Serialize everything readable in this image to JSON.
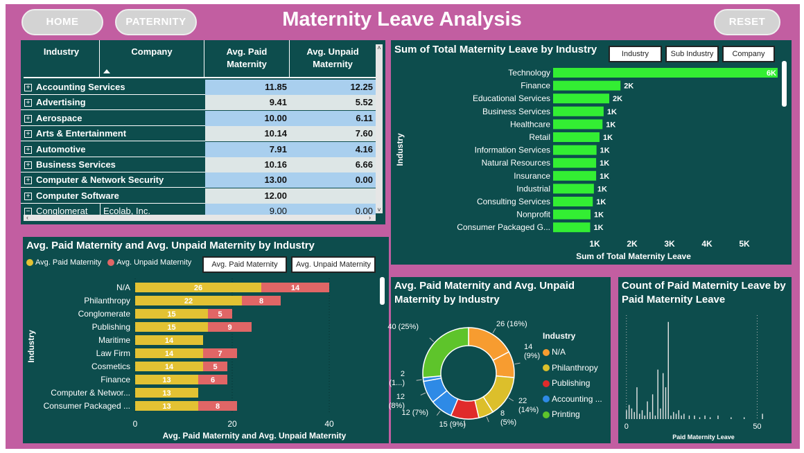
{
  "header": {
    "title": "Maternity Leave Analysis",
    "home_label": "HOME",
    "paternity_label": "PATERNITY",
    "reset_label": "RESET"
  },
  "colors": {
    "frame": "#c25ea1",
    "panel": "#0d4d4d",
    "bar_green": "#33ee33",
    "paid": "#e3c233",
    "unpaid": "#e06666",
    "row_blue": "#a9cfee",
    "row_light": "#dde6e6"
  },
  "table": {
    "headers": [
      "Industry",
      "Company",
      "Avg. Paid Maternity",
      "Avg. Unpaid Maternity"
    ],
    "rows": [
      {
        "industry": "Accounting Services",
        "company": "",
        "paid": "11.85",
        "unpaid": "12.25"
      },
      {
        "industry": "Advertising",
        "company": "",
        "paid": "9.41",
        "unpaid": "5.52"
      },
      {
        "industry": "Aerospace",
        "company": "",
        "paid": "10.00",
        "unpaid": "6.11"
      },
      {
        "industry": "Arts & Entertainment",
        "company": "",
        "paid": "10.14",
        "unpaid": "7.60"
      },
      {
        "industry": "Automotive",
        "company": "",
        "paid": "7.91",
        "unpaid": "4.16"
      },
      {
        "industry": "Business Services",
        "company": "",
        "paid": "10.16",
        "unpaid": "6.66"
      },
      {
        "industry": "Computer & Network Security",
        "company": "",
        "paid": "13.00",
        "unpaid": "0.00"
      },
      {
        "industry": "Computer Software",
        "company": "",
        "paid": "12.00",
        "unpaid": ""
      },
      {
        "industry": "Conglomerat",
        "company": "Ecolab, Inc.",
        "paid": "9.00",
        "unpaid": "0.00"
      }
    ]
  },
  "chart_data": [
    {
      "type": "bar",
      "title": "Sum of Total Maternity Leave by Industry",
      "xlabel": "Sum of Total Maternity Leave",
      "ylabel": "Industry",
      "buttons": [
        "Industry",
        "Sub Industry",
        "Company"
      ],
      "categories": [
        "Technology",
        "Finance",
        "Educational Services",
        "Business Services",
        "Healthcare",
        "Retail",
        "Information Services",
        "Natural Resources",
        "Insurance",
        "Industrial",
        "Consulting Services",
        "Nonprofit",
        "Consumer Packaged G..."
      ],
      "values": [
        6000,
        1800,
        1500,
        1350,
        1320,
        1240,
        1160,
        1150,
        1150,
        1090,
        1060,
        1000,
        990
      ],
      "data_labels": [
        "6K",
        "2K",
        "2K",
        "1K",
        "1K",
        "1K",
        "1K",
        "1K",
        "1K",
        "1K",
        "1K",
        "1K",
        "1K"
      ],
      "xticks": [
        1000,
        2000,
        3000,
        4000,
        5000
      ],
      "xtick_labels": [
        "1K",
        "2K",
        "3K",
        "4K",
        "5K"
      ],
      "xlim": [
        0,
        6000
      ]
    },
    {
      "type": "bar",
      "stacked": true,
      "title": "Avg. Paid Maternity and Avg. Unpaid Maternity by Industry",
      "xlabel": "Avg. Paid Maternity and Avg. Unpaid Maternity",
      "ylabel": "Industry",
      "buttons": [
        "Avg. Paid Maternity",
        "Avg. Unpaid Maternity"
      ],
      "categories": [
        "N/A",
        "Philanthropy",
        "Conglomerate",
        "Publishing",
        "Maritime",
        "Law Firm",
        "Cosmetics",
        "Finance",
        "Computer & Networ...",
        "Consumer Packaged ..."
      ],
      "series": [
        {
          "name": "Avg. Paid Maternity",
          "values": [
            26,
            22,
            15,
            15,
            14,
            14,
            14,
            13,
            13,
            13
          ]
        },
        {
          "name": "Avg. Unpaid Maternity",
          "values": [
            14,
            8,
            5,
            9,
            0,
            7,
            5,
            6,
            0,
            8
          ]
        }
      ],
      "xticks": [
        0,
        20,
        40
      ],
      "xlim": [
        0,
        42
      ]
    },
    {
      "type": "pie",
      "donut": true,
      "title": "Avg. Paid Maternity and Avg. Unpaid Maternity by Industry",
      "legend_title": "Industry",
      "legend": [
        "N/A",
        "Philanthropy",
        "Publishing",
        "Accounting ...",
        "Printing"
      ],
      "slices": [
        {
          "value": 26,
          "label": "26 (16%)",
          "color": "#f79c30"
        },
        {
          "value": 14,
          "label": "14 (9%)",
          "color": "#f79c30"
        },
        {
          "value": 22,
          "label": "22 (14%)",
          "color": "#dcbf2b"
        },
        {
          "value": 8,
          "label": "8 (5%)",
          "color": "#dcbf2b"
        },
        {
          "value": 15,
          "label": "15 (9%)",
          "color": "#e02b2b"
        },
        {
          "value": 12,
          "label": "12 (7%)",
          "color": "#2e8ae6"
        },
        {
          "value": 12,
          "label": "12 (8%)",
          "color": "#2e8ae6"
        },
        {
          "value": 2,
          "label": "2 (1...)",
          "color": "#2e8ae6"
        },
        {
          "value": 40,
          "label": "40 (25%)",
          "color": "#5ec42b"
        }
      ]
    },
    {
      "type": "bar",
      "title": "Count of Paid Maternity Leave by Paid Maternity Leave",
      "xlabel": "Paid Maternity Leave",
      "xticks": [
        0,
        50
      ],
      "xlim": [
        -1,
        52
      ],
      "x": [
        0,
        1,
        2,
        3,
        4,
        5,
        6,
        7,
        8,
        9,
        10,
        11,
        12,
        13,
        14,
        15,
        16,
        17,
        18,
        19,
        20,
        21,
        22,
        24,
        26,
        28,
        30,
        32,
        35,
        40,
        45,
        52
      ],
      "values": [
        5,
        8,
        6,
        4,
        18,
        3,
        5,
        2,
        10,
        4,
        14,
        2,
        28,
        6,
        26,
        18,
        55,
        2,
        4,
        3,
        5,
        2,
        3,
        2,
        2,
        1,
        2,
        1,
        2,
        1,
        1,
        3
      ]
    }
  ]
}
